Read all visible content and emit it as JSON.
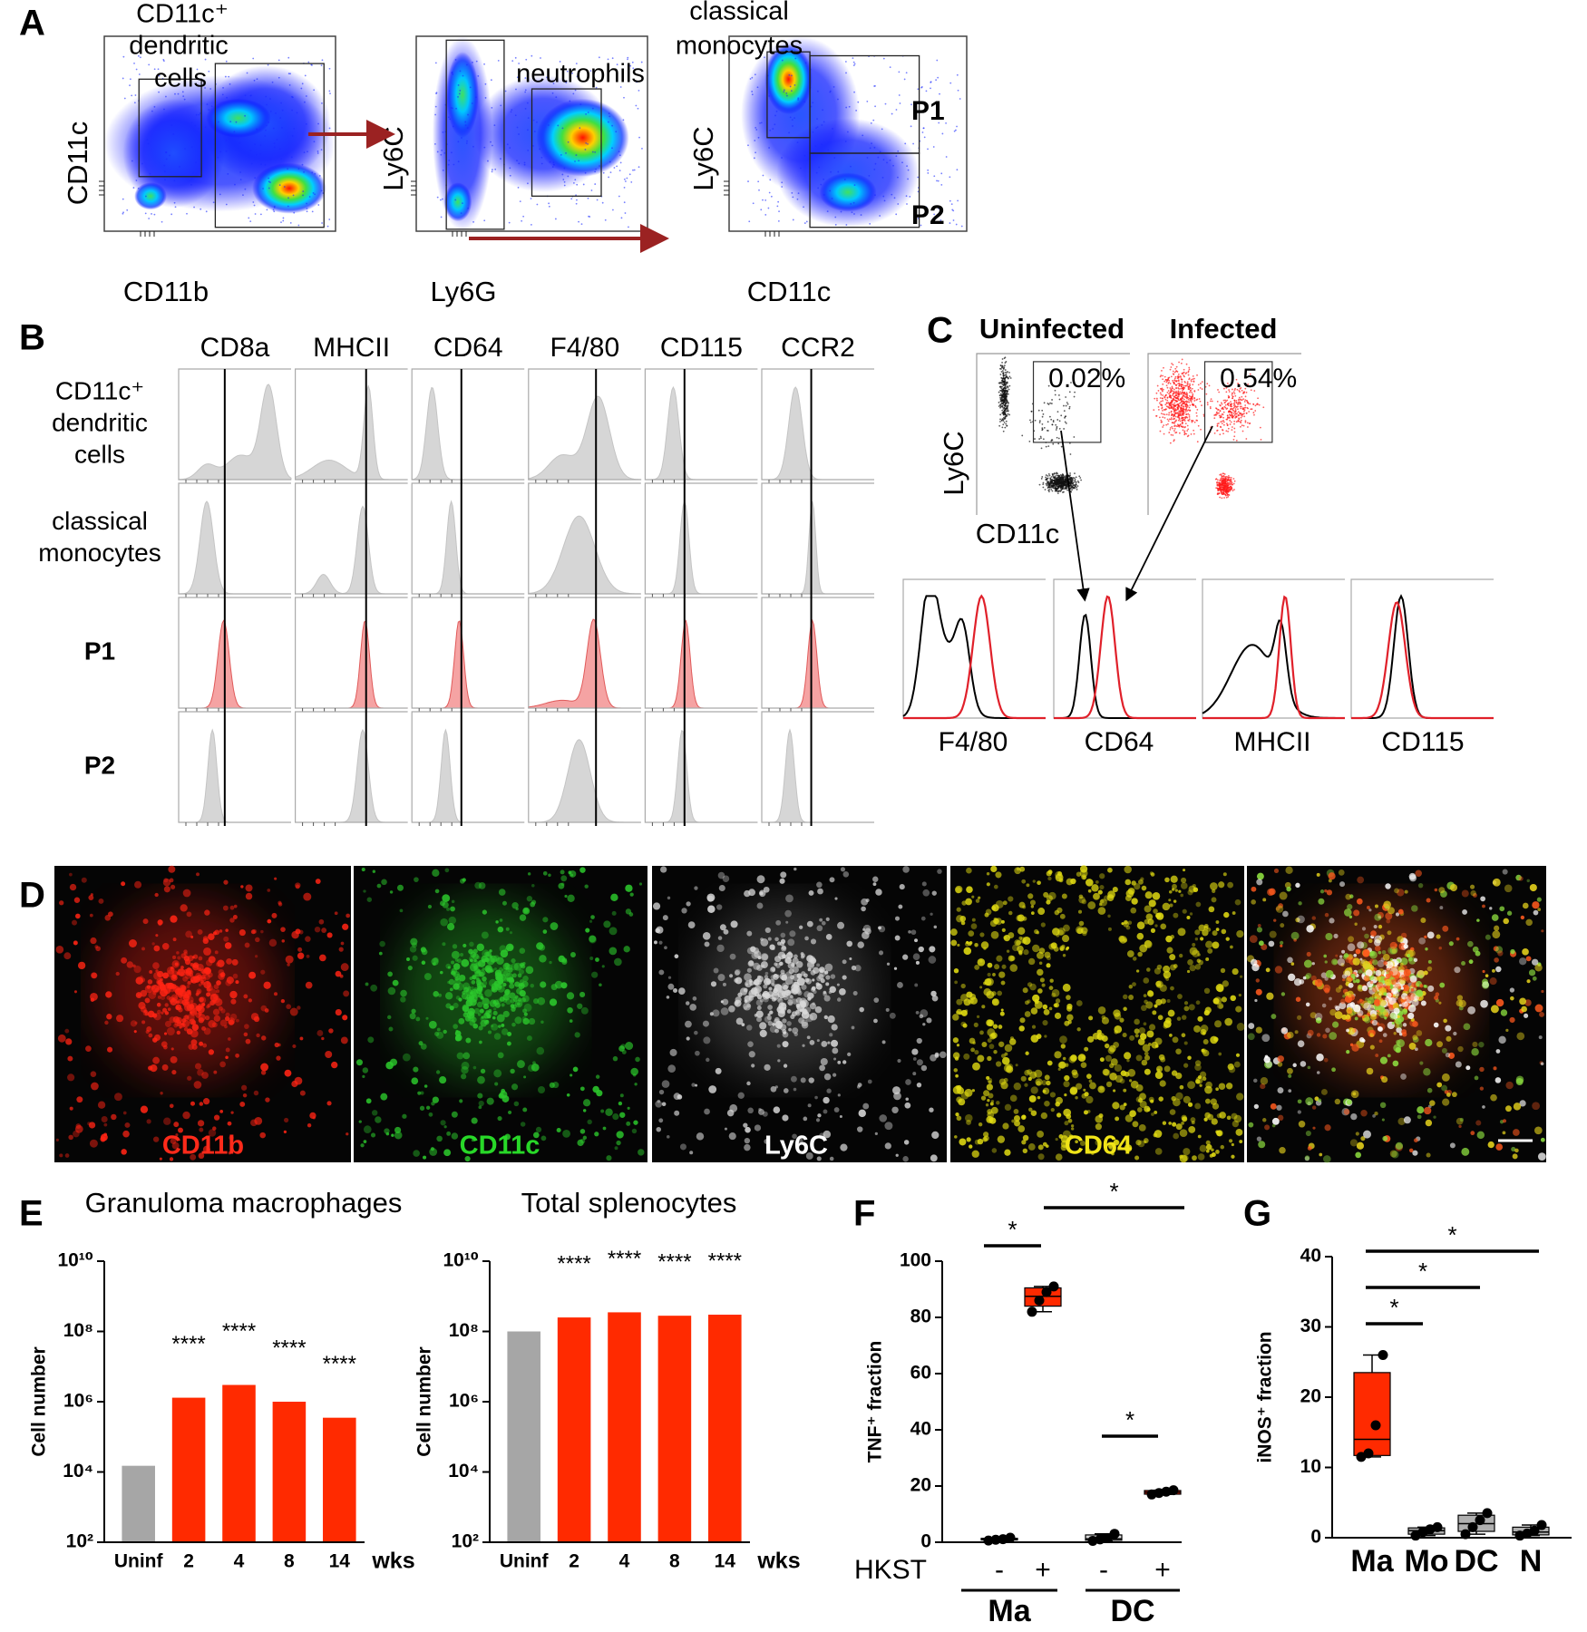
{
  "panel_a": {
    "label": "A",
    "plots": [
      {
        "x_label": "CD11b",
        "y_label": "CD11c",
        "gate_label": [
          "CD11c⁺",
          "dendritic",
          "cells"
        ]
      },
      {
        "x_label": "Ly6G",
        "y_label": "Ly6C",
        "gate_label": [
          "neutrophils"
        ]
      },
      {
        "x_label": "CD11c",
        "y_label": "Ly6C",
        "gate_label": [
          "classical",
          "monocytes"
        ],
        "subsets": [
          "P1",
          "P2"
        ]
      }
    ]
  },
  "panel_b": {
    "label": "B",
    "markers": [
      "CD8a",
      "MHCII",
      "CD64",
      "F4/80",
      "CD115",
      "CCR2"
    ],
    "rows": [
      [
        "CD11c⁺",
        "dendritic",
        "cells"
      ],
      [
        "classical",
        "monocytes"
      ],
      [
        "P1"
      ],
      [
        "P2"
      ]
    ]
  },
  "panel_c": {
    "label": "C",
    "conditions": [
      "Uninfected",
      "Infected"
    ],
    "gate_percent": [
      "0.02%",
      "0.54%"
    ],
    "y_label": "Ly6C",
    "x_label": "CD11c",
    "markers": [
      "F4/80",
      "CD64",
      "MHCII",
      "CD115"
    ]
  },
  "panel_d": {
    "label": "D",
    "stains": [
      "CD11b",
      "CD11c",
      "Ly6C",
      "CD64"
    ]
  },
  "chart_data": [
    {
      "type": "bar",
      "panel": "E",
      "title": "Granuloma macrophages",
      "y_label": "Cell number",
      "x_unit": "wks",
      "categories": [
        "Uninf",
        "2",
        "4",
        "8",
        "14"
      ],
      "values": [
        15000,
        1300000,
        3000000,
        1000000,
        350000
      ],
      "colors": [
        "#a6a6a6",
        "#ff2a00",
        "#ff2a00",
        "#ff2a00",
        "#ff2a00"
      ],
      "value_annotations": [
        null,
        "****",
        "****",
        "****",
        "****"
      ],
      "log_scale": true,
      "ylim": [
        100,
        10000000000
      ],
      "yticks": [
        {
          "value": 100,
          "label": "10²"
        },
        {
          "value": 10000,
          "label": "10⁴"
        },
        {
          "value": 1000000,
          "label": "10⁶"
        },
        {
          "value": 100000000,
          "label": "10⁸"
        },
        {
          "value": 10000000000,
          "label": "10¹⁰"
        }
      ]
    },
    {
      "type": "bar",
      "title": "Total splenocytes",
      "y_label": "Cell number",
      "x_unit": "wks",
      "categories": [
        "Uninf",
        "2",
        "4",
        "8",
        "14"
      ],
      "values": [
        100000000,
        250000000,
        350000000,
        280000000,
        300000000
      ],
      "colors": [
        "#a6a6a6",
        "#ff2a00",
        "#ff2a00",
        "#ff2a00",
        "#ff2a00"
      ],
      "value_annotations": [
        null,
        "****",
        "****",
        "****",
        "****"
      ],
      "log_scale": true,
      "ylim": [
        100,
        10000000000
      ],
      "yticks": [
        {
          "value": 100,
          "label": "10²"
        },
        {
          "value": 10000,
          "label": "10⁴"
        },
        {
          "value": 1000000,
          "label": "10⁶"
        },
        {
          "value": 100000000,
          "label": "10⁸"
        },
        {
          "value": 10000000000,
          "label": "10¹⁰"
        }
      ]
    },
    {
      "type": "box",
      "panel": "F",
      "y_label": "TNF⁺ fraction",
      "x_label": "HKST",
      "groups": [
        "Ma",
        "DC"
      ],
      "categories": [
        "-",
        "+",
        "-",
        "+"
      ],
      "colors": [
        "#d9d9d9",
        "#ff2a00",
        "#d9d9d9",
        "#ff2a00"
      ],
      "boxes": [
        {
          "min": 0.6,
          "q1": 0.8,
          "median": 1,
          "q3": 1.4,
          "max": 1.6
        },
        {
          "min": 82,
          "q1": 84,
          "median": 87.5,
          "q3": 90.5,
          "max": 91
        },
        {
          "min": 0.5,
          "q1": 0.7,
          "median": 1.2,
          "q3": 2.6,
          "max": 3
        },
        {
          "min": 17,
          "q1": 17.1,
          "median": 17.8,
          "q3": 18.4,
          "max": 18.5
        }
      ],
      "points": [
        [
          0.6,
          0.9,
          1.1,
          1.6
        ],
        [
          82,
          86,
          89,
          91
        ],
        [
          0.5,
          1,
          1.5,
          3
        ],
        [
          17,
          17.5,
          18,
          18.5
        ]
      ],
      "significance": [
        "*",
        "*",
        "*"
      ],
      "ylim": [
        0,
        100
      ],
      "yticks": [
        0,
        20,
        40,
        60,
        80,
        100
      ]
    },
    {
      "type": "box",
      "panel": "G",
      "y_label": "iNOS⁺ fraction",
      "categories": [
        "Ma",
        "Mo",
        "DC",
        "N"
      ],
      "colors": [
        "#ff2a00",
        "#b0b0b0",
        "#b0b0b0",
        "#b0b0b0"
      ],
      "boxes": [
        {
          "min": 11.5,
          "q1": 11.7,
          "median": 14,
          "q3": 23.5,
          "max": 26
        },
        {
          "min": 0.3,
          "q1": 0.5,
          "median": 1,
          "q3": 1.4,
          "max": 1.5
        },
        {
          "min": 0.5,
          "q1": 0.9,
          "median": 2,
          "q3": 3.2,
          "max": 3.5
        },
        {
          "min": 0.3,
          "q1": 0.4,
          "median": 0.8,
          "q3": 1.5,
          "max": 1.8
        }
      ],
      "points": [
        [
          11.5,
          12,
          16,
          26
        ],
        [
          0.3,
          0.8,
          1.2,
          1.5
        ],
        [
          0.5,
          1.5,
          2.5,
          3.5
        ],
        [
          0.3,
          0.6,
          1,
          1.8
        ]
      ],
      "significance": [
        "*",
        "*",
        "*"
      ],
      "ylim": [
        0,
        40
      ],
      "yticks": [
        0,
        10,
        20,
        30,
        40
      ]
    }
  ]
}
